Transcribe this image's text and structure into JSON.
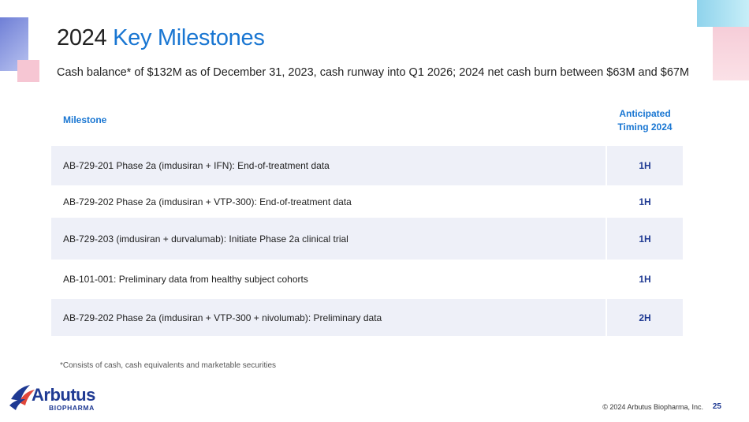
{
  "title": {
    "year": "2024",
    "accent": "Key Milestones"
  },
  "subtitle": "Cash balance* of $132M as of December 31, 2023, cash runway into Q1 2026; 2024 net cash burn between $63M and $67M",
  "table": {
    "headers": {
      "milestone": "Milestone",
      "timing_line1": "Anticipated",
      "timing_line2": "Timing 2024"
    },
    "rows": [
      {
        "milestone": "AB-729-201 Phase 2a (imdusiran + IFN):  End-of-treatment data",
        "timing": "1H"
      },
      {
        "milestone": "AB-729-202 Phase 2a (imdusiran + VTP-300):  End-of-treatment data",
        "timing": "1H"
      },
      {
        "milestone": "AB-729-203 (imdusiran + durvalumab):  Initiate Phase 2a clinical trial",
        "timing": "1H"
      },
      {
        "milestone": "AB-101-001: Preliminary data from healthy subject cohorts",
        "timing": "1H"
      },
      {
        "milestone": "AB-729-202 Phase 2a (imdusiran + VTP-300 + nivolumab):  Preliminary data",
        "timing": "2H"
      }
    ]
  },
  "footnote": "*Consists of cash, cash equivalents and marketable securities",
  "logo": {
    "name": "Arbutus",
    "sub": "BIOPHARMA"
  },
  "footer": {
    "copyright": "© 2024 Arbutus Biopharma, Inc.",
    "page": "25"
  },
  "colors": {
    "accent": "#1976d2",
    "brand": "#1f3a93",
    "row_shade": "#eef0f8"
  }
}
